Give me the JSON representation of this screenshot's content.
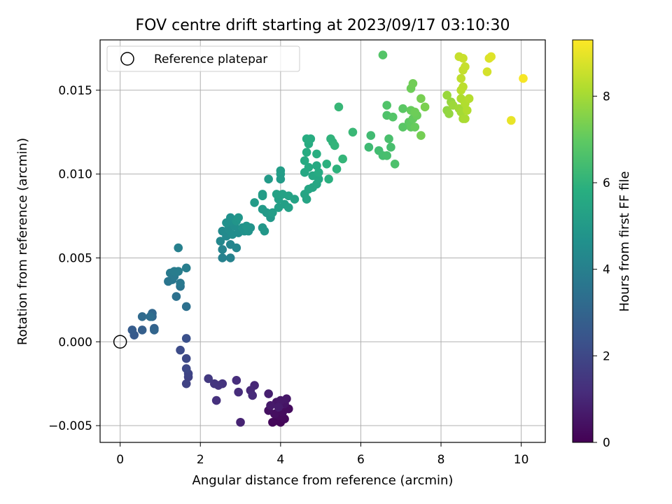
{
  "chart_data": {
    "type": "scatter",
    "title": "FOV centre drift starting at 2023/09/17 03:10:30",
    "xlabel": "Angular distance from reference (arcmin)",
    "ylabel": "Rotation from reference (arcmin)",
    "xlim": [
      -0.5,
      10.6
    ],
    "ylim": [
      -0.006,
      0.018
    ],
    "xticks": [
      0,
      2,
      4,
      6,
      8,
      10
    ],
    "xtick_labels": [
      "0",
      "2",
      "4",
      "6",
      "8",
      "10"
    ],
    "yticks": [
      -0.005,
      0.0,
      0.005,
      0.01,
      0.015
    ],
    "ytick_labels": [
      "−0.005",
      "0.000",
      "0.005",
      "0.010",
      "0.015"
    ],
    "grid": true,
    "legend": {
      "placement": "top-left",
      "entries": [
        "Reference platepar"
      ]
    },
    "reference_point": {
      "x": 0,
      "y": 0,
      "label": "Reference platepar"
    },
    "colorbar": {
      "label": "Hours from first FF file",
      "colormap": "viridis",
      "range": [
        0,
        9.3
      ],
      "ticks": [
        0,
        2,
        4,
        6,
        8
      ],
      "tick_labels": [
        "0",
        "2",
        "4",
        "6",
        "8"
      ]
    },
    "points": [
      [
        3.9,
        -0.0047,
        0.1
      ],
      [
        4.0,
        -0.0048,
        0.12
      ],
      [
        3.8,
        -0.0048,
        0.15
      ],
      [
        4.1,
        -0.0046,
        0.2
      ],
      [
        3.95,
        -0.0044,
        0.25
      ],
      [
        4.05,
        -0.0042,
        0.3
      ],
      [
        3.85,
        -0.0043,
        0.35
      ],
      [
        4.2,
        -0.004,
        0.3
      ],
      [
        3.7,
        -0.0041,
        0.4
      ],
      [
        4.1,
        -0.0037,
        0.5
      ],
      [
        3.9,
        -0.0036,
        0.55
      ],
      [
        4.0,
        -0.0035,
        0.6
      ],
      [
        3.75,
        -0.0038,
        0.65
      ],
      [
        4.15,
        -0.0034,
        0.6
      ],
      [
        3.95,
        -0.0039,
        0.7
      ],
      [
        3.7,
        -0.0031,
        0.8
      ],
      [
        3.0,
        -0.0048,
        0.9
      ],
      [
        3.35,
        -0.0026,
        1.0
      ],
      [
        3.25,
        -0.0029,
        1.05
      ],
      [
        3.3,
        -0.0032,
        1.1
      ],
      [
        2.95,
        -0.003,
        1.15
      ],
      [
        2.9,
        -0.0023,
        1.2
      ],
      [
        2.4,
        -0.0035,
        1.3
      ],
      [
        2.55,
        -0.0025,
        1.35
      ],
      [
        2.45,
        -0.0026,
        1.4
      ],
      [
        2.35,
        -0.0025,
        1.45
      ],
      [
        2.2,
        -0.0022,
        1.55
      ],
      [
        1.7,
        -0.0021,
        1.8
      ],
      [
        1.65,
        -0.0025,
        1.85
      ],
      [
        1.7,
        -0.0019,
        1.9
      ],
      [
        1.65,
        -0.0016,
        2.0
      ],
      [
        1.65,
        -0.001,
        2.05
      ],
      [
        1.5,
        -0.0005,
        2.15
      ],
      [
        1.65,
        0.0002,
        2.3
      ],
      [
        0.35,
        0.0004,
        2.6
      ],
      [
        0.3,
        0.0007,
        2.7
      ],
      [
        0.55,
        0.0007,
        2.8
      ],
      [
        0.85,
        0.0008,
        2.9
      ],
      [
        0.85,
        0.0007,
        3.0
      ],
      [
        0.8,
        0.0015,
        3.05
      ],
      [
        0.8,
        0.0017,
        3.1
      ],
      [
        0.55,
        0.0015,
        3.2
      ],
      [
        0.75,
        0.0015,
        3.3
      ],
      [
        1.65,
        0.0021,
        3.4
      ],
      [
        1.4,
        0.0027,
        3.45
      ],
      [
        1.5,
        0.0033,
        3.55
      ],
      [
        1.2,
        0.0036,
        3.6
      ],
      [
        1.3,
        0.0037,
        3.65
      ],
      [
        1.5,
        0.0035,
        3.7
      ],
      [
        1.35,
        0.0039,
        3.75
      ],
      [
        1.25,
        0.0041,
        3.8
      ],
      [
        1.35,
        0.0042,
        3.85
      ],
      [
        1.45,
        0.0042,
        3.9
      ],
      [
        1.65,
        0.0044,
        3.95
      ],
      [
        1.45,
        0.0056,
        4.0
      ],
      [
        2.55,
        0.005,
        4.05
      ],
      [
        2.75,
        0.005,
        4.1
      ],
      [
        2.55,
        0.0055,
        4.15
      ],
      [
        2.75,
        0.0058,
        4.2
      ],
      [
        2.9,
        0.0056,
        4.25
      ],
      [
        2.5,
        0.006,
        4.3
      ],
      [
        2.65,
        0.0063,
        4.35
      ],
      [
        2.55,
        0.0066,
        4.4
      ],
      [
        2.7,
        0.0067,
        4.45
      ],
      [
        2.8,
        0.0064,
        4.5
      ],
      [
        2.95,
        0.0065,
        4.5
      ],
      [
        2.85,
        0.0069,
        4.55
      ],
      [
        2.75,
        0.0072,
        4.6
      ],
      [
        2.75,
        0.0074,
        4.65
      ],
      [
        2.65,
        0.0071,
        4.65
      ],
      [
        3.05,
        0.0068,
        4.7
      ],
      [
        3.1,
        0.0066,
        4.7
      ],
      [
        3.2,
        0.0066,
        4.75
      ],
      [
        3.25,
        0.0068,
        4.75
      ],
      [
        3.15,
        0.0069,
        4.8
      ],
      [
        2.9,
        0.0072,
        4.8
      ],
      [
        2.95,
        0.0074,
        4.85
      ],
      [
        3.55,
        0.0068,
        4.9
      ],
      [
        3.6,
        0.0066,
        4.9
      ],
      [
        3.75,
        0.0074,
        4.95
      ],
      [
        3.65,
        0.0077,
        5.0
      ],
      [
        3.55,
        0.0079,
        5.0
      ],
      [
        3.35,
        0.0083,
        5.05
      ],
      [
        3.55,
        0.0087,
        5.1
      ],
      [
        3.55,
        0.0088,
        5.1
      ],
      [
        3.8,
        0.0077,
        5.15
      ],
      [
        3.95,
        0.008,
        5.2
      ],
      [
        4.1,
        0.0082,
        5.2
      ],
      [
        4.2,
        0.008,
        5.25
      ],
      [
        3.95,
        0.0085,
        5.25
      ],
      [
        4.05,
        0.0088,
        5.3
      ],
      [
        3.9,
        0.0088,
        5.3
      ],
      [
        4.2,
        0.0087,
        5.35
      ],
      [
        4.35,
        0.0085,
        5.35
      ],
      [
        4.65,
        0.0085,
        5.4
      ],
      [
        4.6,
        0.0088,
        5.4
      ],
      [
        4.8,
        0.0092,
        5.45
      ],
      [
        4.7,
        0.0091,
        5.45
      ],
      [
        4.9,
        0.0094,
        5.5
      ],
      [
        4.95,
        0.0097,
        5.5
      ],
      [
        4.8,
        0.0099,
        5.55
      ],
      [
        4.6,
        0.0101,
        5.55
      ],
      [
        4.7,
        0.0104,
        5.6
      ],
      [
        4.9,
        0.0105,
        5.6
      ],
      [
        4.95,
        0.0101,
        5.65
      ],
      [
        4.6,
        0.0108,
        5.65
      ],
      [
        4.65,
        0.0113,
        5.7
      ],
      [
        4.7,
        0.0118,
        5.7
      ],
      [
        4.65,
        0.0121,
        5.75
      ],
      [
        4.75,
        0.0121,
        5.75
      ],
      [
        4.9,
        0.0112,
        5.8
      ],
      [
        3.7,
        0.0097,
        5.0
      ],
      [
        4.0,
        0.0097,
        5.05
      ],
      [
        4.0,
        0.01,
        5.1
      ],
      [
        4.0,
        0.0102,
        5.15
      ],
      [
        5.2,
        0.0097,
        5.85
      ],
      [
        5.15,
        0.0106,
        5.9
      ],
      [
        5.4,
        0.0103,
        5.95
      ],
      [
        5.25,
        0.0121,
        6.0
      ],
      [
        5.3,
        0.0119,
        6.0
      ],
      [
        5.35,
        0.0117,
        6.05
      ],
      [
        5.55,
        0.0109,
        6.1
      ],
      [
        5.45,
        0.014,
        6.15
      ],
      [
        5.8,
        0.0125,
        6.2
      ],
      [
        6.2,
        0.0116,
        6.3
      ],
      [
        6.25,
        0.0123,
        6.35
      ],
      [
        6.45,
        0.0114,
        6.4
      ],
      [
        6.55,
        0.0111,
        6.45
      ],
      [
        6.65,
        0.0111,
        6.5
      ],
      [
        6.75,
        0.0116,
        6.5
      ],
      [
        6.7,
        0.0121,
        6.55
      ],
      [
        6.85,
        0.0106,
        6.6
      ],
      [
        6.65,
        0.0135,
        6.65
      ],
      [
        6.65,
        0.0141,
        6.7
      ],
      [
        6.8,
        0.0134,
        6.75
      ],
      [
        6.55,
        0.0171,
        6.75
      ],
      [
        7.05,
        0.0128,
        6.85
      ],
      [
        7.05,
        0.0139,
        6.9
      ],
      [
        7.2,
        0.0131,
        6.95
      ],
      [
        7.25,
        0.0128,
        7.0
      ],
      [
        7.3,
        0.0133,
        7.05
      ],
      [
        7.35,
        0.0128,
        7.1
      ],
      [
        7.25,
        0.0138,
        7.1
      ],
      [
        7.4,
        0.0135,
        7.15
      ],
      [
        7.35,
        0.0137,
        7.2
      ],
      [
        7.25,
        0.0151,
        7.2
      ],
      [
        7.3,
        0.0154,
        7.25
      ],
      [
        7.5,
        0.0123,
        7.3
      ],
      [
        7.5,
        0.0145,
        7.35
      ],
      [
        7.6,
        0.014,
        7.4
      ],
      [
        8.15,
        0.0138,
        7.7
      ],
      [
        8.2,
        0.0136,
        7.75
      ],
      [
        8.25,
        0.0143,
        7.8
      ],
      [
        8.15,
        0.0147,
        7.85
      ],
      [
        8.3,
        0.0141,
        7.9
      ],
      [
        8.45,
        0.0139,
        7.95
      ],
      [
        8.5,
        0.0137,
        8.0
      ],
      [
        8.55,
        0.0133,
        8.05
      ],
      [
        8.6,
        0.0133,
        8.1
      ],
      [
        8.5,
        0.0145,
        8.15
      ],
      [
        8.6,
        0.0142,
        8.2
      ],
      [
        8.65,
        0.0138,
        8.2
      ],
      [
        8.7,
        0.0145,
        8.25
      ],
      [
        8.5,
        0.015,
        8.3
      ],
      [
        8.55,
        0.0152,
        8.35
      ],
      [
        8.5,
        0.0157,
        8.4
      ],
      [
        8.55,
        0.0162,
        8.45
      ],
      [
        8.6,
        0.0164,
        8.5
      ],
      [
        8.45,
        0.017,
        8.5
      ],
      [
        8.55,
        0.0169,
        8.55
      ],
      [
        9.15,
        0.0161,
        8.7
      ],
      [
        9.2,
        0.0169,
        8.8
      ],
      [
        9.25,
        0.017,
        8.85
      ],
      [
        9.75,
        0.0132,
        9.0
      ],
      [
        10.05,
        0.0157,
        9.2
      ]
    ]
  }
}
